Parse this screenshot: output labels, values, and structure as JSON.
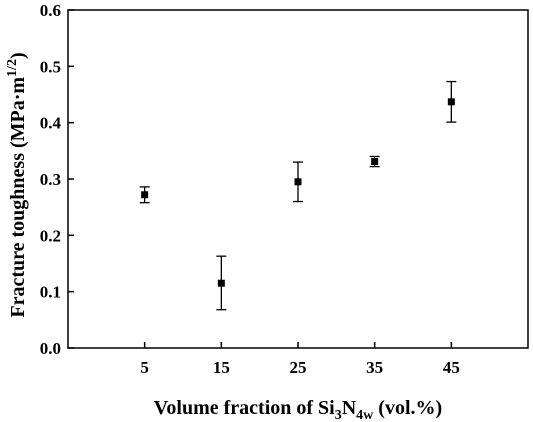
{
  "chart_data": {
    "type": "scatter",
    "xlabel": {
      "prefix": "Volume fraction of Si",
      "sub1": "3",
      "mid": "N",
      "sub2": "4w",
      "suffix": " (vol.%)"
    },
    "ylabel": {
      "main": "Fracture toughness (MPa·m",
      "sup": "1/2",
      "close": ")"
    },
    "x_ticks": [
      5,
      15,
      25,
      35,
      45
    ],
    "x_tick_labels": [
      "5",
      "15",
      "25",
      "35",
      "45"
    ],
    "y_ticks": [
      0.0,
      0.1,
      0.2,
      0.3,
      0.4,
      0.5,
      0.6
    ],
    "y_tick_labels": [
      "0.0",
      "0.1",
      "0.2",
      "0.3",
      "0.4",
      "0.5",
      "0.6"
    ],
    "xlim": [
      -5,
      55
    ],
    "ylim": [
      0,
      0.6
    ],
    "grid": false,
    "marker_color": "#000000",
    "points": [
      {
        "x": 5,
        "y": 0.272,
        "err_low": 0.258,
        "err_high": 0.286
      },
      {
        "x": 15,
        "y": 0.115,
        "err_low": 0.068,
        "err_high": 0.163
      },
      {
        "x": 25,
        "y": 0.295,
        "err_low": 0.26,
        "err_high": 0.33
      },
      {
        "x": 35,
        "y": 0.331,
        "err_low": 0.322,
        "err_high": 0.34
      },
      {
        "x": 45,
        "y": 0.437,
        "err_low": 0.401,
        "err_high": 0.473
      }
    ]
  }
}
